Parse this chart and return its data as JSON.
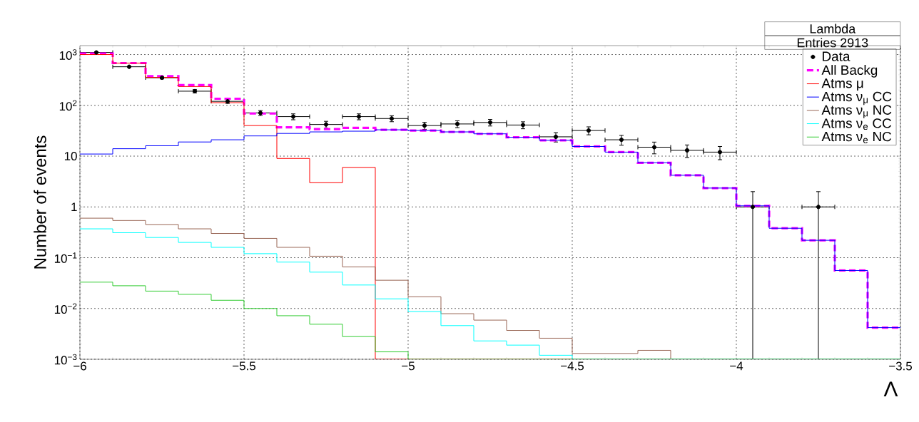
{
  "chart_data": {
    "type": "histogram",
    "xlabel": "Λ",
    "ylabel": "Number of events",
    "annotations": [
      "Lambda",
      "Entries 2913"
    ],
    "bins": [
      -6,
      -5.9,
      -5.8,
      -5.7,
      -5.6,
      -5.5,
      -5.4,
      -5.3,
      -5.2,
      -5.1,
      -5,
      -4.9,
      -4.8,
      -4.7,
      -4.6,
      -4.5,
      -4.4,
      -4.3,
      -4.2,
      -4.1,
      -4,
      -3.9,
      -3.8,
      -3.7,
      -3.6,
      -3.5
    ],
    "xlim": [
      -6,
      -3.5
    ],
    "xticks": [
      {
        "value": -6,
        "label": "−6"
      },
      {
        "value": -5.5,
        "label": "−5.5"
      },
      {
        "value": -5,
        "label": "−5"
      },
      {
        "value": -4.5,
        "label": "−4.5"
      },
      {
        "value": -4,
        "label": "−4"
      },
      {
        "value": -3.5,
        "label": "−3.5"
      }
    ],
    "ylim": [
      0.001,
      1500
    ],
    "log": "y",
    "yticks": [
      {
        "value": 0.001,
        "label": "10$^{−3}$"
      },
      {
        "value": 0.01,
        "label": "10$^{−2}$"
      },
      {
        "value": 0.1,
        "label": "10$^{−1}$"
      },
      {
        "value": 1,
        "label": "1"
      },
      {
        "value": 10,
        "label": "10"
      },
      {
        "value": 100,
        "label": "10$^{2}$"
      },
      {
        "value": 1000,
        "label": "10$^{3}$"
      }
    ],
    "grid": true,
    "legend": "top right",
    "series": [
      {
        "name": "Data",
        "type": "scatter",
        "marker": "circle",
        "color": "#000000",
        "x": [
          -5.95,
          -5.85,
          -5.75,
          -5.65,
          -5.55,
          -5.45,
          -5.35,
          -5.25,
          -5.15,
          -5.05,
          -4.95,
          -4.85,
          -4.75,
          -4.65,
          -4.55,
          -4.45,
          -4.35,
          -4.25,
          -4.15,
          -4.05,
          -3.95,
          -3.75
        ],
        "values": [
          1100,
          575,
          350,
          190,
          120,
          71,
          60,
          42,
          60,
          55,
          40,
          43,
          46,
          41,
          24,
          32,
          21,
          15,
          13,
          12,
          1,
          1
        ],
        "errors": [
          33,
          null,
          19,
          14,
          11,
          8,
          8,
          6.5,
          8,
          7.4,
          6.3,
          6.6,
          6.8,
          6.4,
          5,
          5.7,
          4.6,
          3.9,
          3.6,
          3.5,
          [
            0.001,
            2
          ],
          [
            0.001,
            2
          ]
        ],
        "xerrors": [
          0.05,
          0.05,
          0.05,
          0.05,
          0.05,
          0.05,
          0.05,
          0.05,
          0.05,
          0.05,
          0.05,
          0.05,
          0.05,
          0.05,
          0.05,
          0.05,
          0.05,
          0.05,
          0.05,
          0.05,
          0.05,
          0.05
        ]
      },
      {
        "name": "All Backg",
        "color": "#ff00ff",
        "line_style": "dashed",
        "values": [
          1050,
          680,
          375,
          250,
          135,
          69,
          37,
          34,
          36,
          33,
          32,
          30,
          27.5,
          23.5,
          20.5,
          15.5,
          12,
          7.4,
          4.2,
          2.35,
          1.05,
          0.38,
          0.22,
          0.056,
          0.0042
        ]
      },
      {
        "name": "Atms μ",
        "color": "#ff0000",
        "values": [
          1000,
          680,
          355,
          235,
          113,
          40,
          9,
          3,
          6,
          null,
          null,
          null,
          null,
          null,
          null,
          null,
          null,
          null,
          null,
          null,
          null,
          null,
          null,
          null,
          null
        ]
      },
      {
        "name": "Atms ν$_{μ}$ CC",
        "color": "#0000ff",
        "values": [
          11,
          14,
          16,
          19,
          21,
          25,
          28,
          30,
          31,
          33,
          32,
          30,
          27.5,
          23.5,
          20.5,
          15.5,
          12,
          7.4,
          4.2,
          2.35,
          1.05,
          0.38,
          0.22,
          0.056,
          0.0042
        ]
      },
      {
        "name": "Atms ν$_{μ}$ NC",
        "color": "#996655",
        "values": [
          0.6,
          0.54,
          0.45,
          0.37,
          0.3,
          0.24,
          0.16,
          0.107,
          0.066,
          0.036,
          0.017,
          0.0079,
          0.0059,
          0.0037,
          0.0026,
          0.0013,
          0.0013,
          0.0015,
          null,
          null,
          null,
          null,
          null,
          null,
          null
        ]
      },
      {
        "name": "Atms ν$_{e}$ CC",
        "color": "#00ffff",
        "values": [
          0.37,
          0.31,
          0.25,
          0.2,
          0.16,
          0.12,
          0.082,
          0.052,
          0.029,
          0.0155,
          0.0087,
          0.0046,
          0.0023,
          0.0019,
          0.0012,
          null,
          null,
          null,
          null,
          null,
          null,
          null,
          null,
          null,
          null
        ]
      },
      {
        "name": "Atms ν$_{e}$ NC",
        "color": "#33cc33",
        "values": [
          0.033,
          0.028,
          0.022,
          0.019,
          0.0145,
          0.01,
          0.0072,
          0.0049,
          0.0028,
          0.0014,
          null,
          null,
          null,
          null,
          null,
          null,
          null,
          null,
          null,
          null,
          null,
          null,
          null,
          null,
          null
        ]
      }
    ]
  }
}
